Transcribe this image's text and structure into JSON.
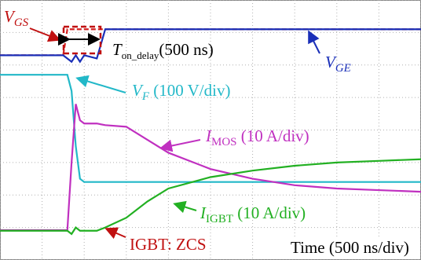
{
  "chart_data": {
    "type": "line",
    "x": [
      0,
      1.5,
      1.6,
      1.7,
      1.8,
      1.9,
      2.0,
      2.3,
      2.5,
      3,
      3.5,
      4,
      5,
      6,
      7,
      8,
      9,
      10
    ],
    "xlim": [
      0,
      10
    ],
    "ylim": [
      -4,
      4
    ],
    "xticks": [
      0,
      1,
      2,
      3,
      4,
      5,
      6,
      7,
      8,
      9,
      10
    ],
    "yticks": [
      -4,
      -3,
      -2,
      -1,
      0,
      1,
      2,
      3,
      4
    ],
    "grid": true,
    "series": [
      {
        "color": "#d42020",
        "dashed": true,
        "label": {
          "main": "V",
          "sub": "GS",
          "rest": ""
        },
        "values": [
          2.3,
          2.3,
          3.1,
          3.1,
          3.1,
          3.1,
          3.1,
          3.1,
          3.1,
          3.1,
          3.1,
          3.1,
          3.1,
          3.1,
          3.1,
          3.1,
          3.1,
          3.1
        ]
      },
      {
        "color": "#1a2fb8",
        "dashed": false,
        "label": {
          "main": "V",
          "sub": "GE",
          "rest": ""
        },
        "values": [
          2.3,
          2.3,
          2.2,
          2.1,
          2.3,
          2.1,
          2.3,
          2.2,
          3.1,
          3.1,
          3.1,
          3.1,
          3.1,
          3.1,
          3.1,
          3.1,
          3.1,
          3.1
        ]
      },
      {
        "color": "#22b8c8",
        "dashed": false,
        "label": {
          "main": "V",
          "sub": "F",
          "rest": " (100 V/div)"
        },
        "values": [
          1.7,
          1.7,
          1.7,
          1.2,
          -0.5,
          -1.5,
          -1.6,
          -1.6,
          -1.6,
          -1.6,
          -1.6,
          -1.6,
          -1.6,
          -1.6,
          -1.6,
          -1.6,
          -1.6,
          -1.6
        ]
      },
      {
        "color": "#c030c0",
        "dashed": false,
        "label": {
          "main": "I",
          "sub": "MOS",
          "rest": " (10 A/div)"
        },
        "values": [
          -3.08,
          -3.08,
          -3.08,
          -1.0,
          0.8,
          0.3,
          0.2,
          0.2,
          0.15,
          0.1,
          -0.3,
          -0.7,
          -1.2,
          -1.5,
          -1.7,
          -1.8,
          -1.85,
          -1.9
        ]
      },
      {
        "color": "#22b022",
        "dashed": false,
        "label": {
          "main": "I",
          "sub": "IGBT",
          "rest": " (10 A/div)"
        },
        "values": [
          -3.1,
          -3.1,
          -3.1,
          -3.2,
          -3.0,
          -3.1,
          -3.1,
          -3.1,
          -3.0,
          -2.7,
          -2.2,
          -1.8,
          -1.45,
          -1.25,
          -1.1,
          -1.0,
          -0.95,
          -0.9
        ]
      }
    ],
    "delay_label": {
      "main": "T",
      "sub": "on_delay",
      "rest": "(500 ns)"
    },
    "zcs_label": "IGBT: ZCS",
    "time_label": "Time (500 ns/div)"
  }
}
